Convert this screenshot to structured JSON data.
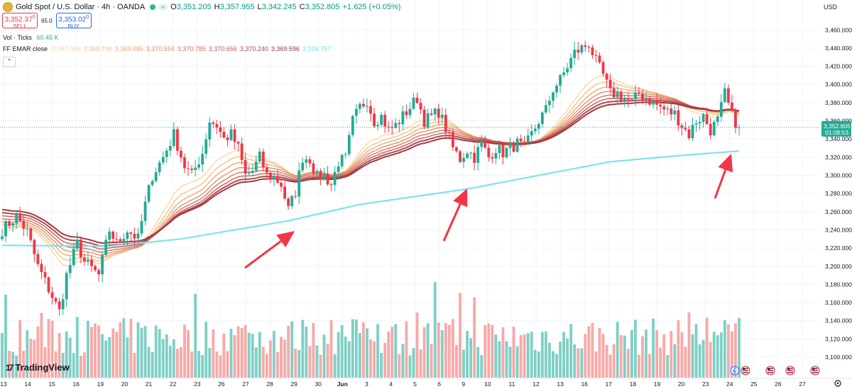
{
  "header": {
    "symbol": "Gold Spot / U.S. Dollar · 4h · OANDA",
    "eq_badge": "≈",
    "ohlc": [
      {
        "k": "O",
        "v": "3,351.205"
      },
      {
        "k": "H",
        "v": "3,357.955"
      },
      {
        "k": "L",
        "v": "3,342.245"
      },
      {
        "k": "C",
        "v": "3,352.805"
      },
      {
        "k": "",
        "v": "+1.625 (+0.05%)"
      }
    ]
  },
  "trade": {
    "sell_price": "3,352.37",
    "sell_sup": "0",
    "sell_label": "SELL",
    "spread": "65.0",
    "buy_price": "3,353.02",
    "buy_sup": "0",
    "buy_label": "BUY"
  },
  "indicators": {
    "vol_label": "Vol · Ticks",
    "vol_value": "60.45 K",
    "emar_label": "FF EMAR close",
    "emar_values": [
      {
        "v": "3,367.384",
        "color": "#f7d9a0"
      },
      {
        "v": "3,368.706",
        "color": "#f3c48a"
      },
      {
        "v": "3,369.885",
        "color": "#eeaa78"
      },
      {
        "v": "3,370.554",
        "color": "#e69068"
      },
      {
        "v": "3,370.785",
        "color": "#d97460"
      },
      {
        "v": "3,370.656",
        "color": "#c75e58"
      },
      {
        "v": "3,370.240",
        "color": "#b24a4c"
      },
      {
        "v": "3,369.596",
        "color": "#9e3a40"
      },
      {
        "v": "3,326.757",
        "color": "#7fe3ec"
      }
    ],
    "collapse_icon": "chevron-up-icon"
  },
  "brand": {
    "name": "TradingView",
    "icon": "tradingview-logo-icon"
  },
  "price_axis": {
    "currency": "USD",
    "last_price": "3,352.805",
    "countdown": "01:08:53",
    "last_color": "#22ab94"
  },
  "chart_data": {
    "type": "candlestick",
    "timeframe": "4h",
    "ylim": [
      3086,
      3468
    ],
    "yticks": [
      3100,
      3120,
      3140,
      3160,
      3180,
      3200,
      3220,
      3240,
      3260,
      3280,
      3300,
      3320,
      3340,
      3360,
      3380,
      3400,
      3420,
      3440,
      3460
    ],
    "xticks": [
      "13",
      "14",
      "15",
      "16",
      "19",
      "20",
      "21",
      "22",
      "23",
      "26",
      "27",
      "28",
      "29",
      "30",
      "Jun",
      "3",
      "4",
      "5",
      "6",
      "9",
      "10",
      "11",
      "12",
      "13",
      "16",
      "17",
      "18",
      "19",
      "20",
      "23",
      "24",
      "25",
      "26",
      "27"
    ],
    "anchors": [
      {
        "t": 0,
        "p": 3240
      },
      {
        "t": 4,
        "p": 3255
      },
      {
        "t": 7,
        "p": 3238
      },
      {
        "t": 10,
        "p": 3200
      },
      {
        "t": 13,
        "p": 3175
      },
      {
        "t": 16,
        "p": 3150
      },
      {
        "t": 18,
        "p": 3190
      },
      {
        "t": 21,
        "p": 3225
      },
      {
        "t": 23,
        "p": 3205
      },
      {
        "t": 27,
        "p": 3190
      },
      {
        "t": 30,
        "p": 3240
      },
      {
        "t": 32,
        "p": 3225
      },
      {
        "t": 35,
        "p": 3240
      },
      {
        "t": 38,
        "p": 3230
      },
      {
        "t": 40,
        "p": 3268
      },
      {
        "t": 42,
        "p": 3300
      },
      {
        "t": 45,
        "p": 3320
      },
      {
        "t": 48,
        "p": 3345
      },
      {
        "t": 51,
        "p": 3310
      },
      {
        "t": 53,
        "p": 3300
      },
      {
        "t": 56,
        "p": 3325
      },
      {
        "t": 58,
        "p": 3360
      },
      {
        "t": 60,
        "p": 3355
      },
      {
        "t": 62,
        "p": 3340
      },
      {
        "t": 64,
        "p": 3345
      },
      {
        "t": 66,
        "p": 3330
      },
      {
        "t": 68,
        "p": 3300
      },
      {
        "t": 70,
        "p": 3305
      },
      {
        "t": 72,
        "p": 3320
      },
      {
        "t": 74,
        "p": 3300
      },
      {
        "t": 76,
        "p": 3298
      },
      {
        "t": 78,
        "p": 3290
      },
      {
        "t": 80,
        "p": 3262
      },
      {
        "t": 82,
        "p": 3282
      },
      {
        "t": 84,
        "p": 3320
      },
      {
        "t": 86,
        "p": 3318
      },
      {
        "t": 88,
        "p": 3298
      },
      {
        "t": 90,
        "p": 3300
      },
      {
        "t": 92,
        "p": 3290
      },
      {
        "t": 94,
        "p": 3315
      },
      {
        "t": 96,
        "p": 3318
      },
      {
        "t": 98,
        "p": 3360
      },
      {
        "t": 100,
        "p": 3375
      },
      {
        "t": 102,
        "p": 3383
      },
      {
        "t": 104,
        "p": 3360
      },
      {
        "t": 106,
        "p": 3365
      },
      {
        "t": 108,
        "p": 3350
      },
      {
        "t": 110,
        "p": 3355
      },
      {
        "t": 112,
        "p": 3365
      },
      {
        "t": 114,
        "p": 3375
      },
      {
        "t": 116,
        "p": 3385
      },
      {
        "t": 118,
        "p": 3360
      },
      {
        "t": 120,
        "p": 3365
      },
      {
        "t": 122,
        "p": 3370
      },
      {
        "t": 124,
        "p": 3352
      },
      {
        "t": 126,
        "p": 3330
      },
      {
        "t": 128,
        "p": 3318
      },
      {
        "t": 130,
        "p": 3328
      },
      {
        "t": 132,
        "p": 3320
      },
      {
        "t": 134,
        "p": 3335
      },
      {
        "t": 136,
        "p": 3320
      },
      {
        "t": 138,
        "p": 3330
      },
      {
        "t": 140,
        "p": 3325
      },
      {
        "t": 142,
        "p": 3330
      },
      {
        "t": 144,
        "p": 3335
      },
      {
        "t": 146,
        "p": 3330
      },
      {
        "t": 148,
        "p": 3345
      },
      {
        "t": 150,
        "p": 3360
      },
      {
        "t": 152,
        "p": 3372
      },
      {
        "t": 154,
        "p": 3395
      },
      {
        "t": 156,
        "p": 3405
      },
      {
        "t": 158,
        "p": 3420
      },
      {
        "t": 160,
        "p": 3435
      },
      {
        "t": 162,
        "p": 3440
      },
      {
        "t": 164,
        "p": 3445
      },
      {
        "t": 166,
        "p": 3425
      },
      {
        "t": 168,
        "p": 3410
      },
      {
        "t": 170,
        "p": 3390
      },
      {
        "t": 172,
        "p": 3390
      },
      {
        "t": 174,
        "p": 3385
      },
      {
        "t": 176,
        "p": 3380
      },
      {
        "t": 178,
        "p": 3390
      },
      {
        "t": 180,
        "p": 3385
      },
      {
        "t": 182,
        "p": 3380
      },
      {
        "t": 184,
        "p": 3375
      },
      {
        "t": 186,
        "p": 3370
      },
      {
        "t": 188,
        "p": 3368
      },
      {
        "t": 190,
        "p": 3355
      },
      {
        "t": 192,
        "p": 3345
      },
      {
        "t": 194,
        "p": 3360
      },
      {
        "t": 196,
        "p": 3365
      },
      {
        "t": 198,
        "p": 3350
      },
      {
        "t": 200,
        "p": 3360
      },
      {
        "t": 202,
        "p": 3390
      },
      {
        "t": 204,
        "p": 3365
      },
      {
        "t": 206,
        "p": 3352.805
      }
    ],
    "ema_slow_anchors": [
      {
        "t": 0,
        "p": 3223
      },
      {
        "t": 30,
        "p": 3222
      },
      {
        "t": 50,
        "p": 3230
      },
      {
        "t": 80,
        "p": 3250
      },
      {
        "t": 100,
        "p": 3268
      },
      {
        "t": 130,
        "p": 3285
      },
      {
        "t": 150,
        "p": 3300
      },
      {
        "t": 170,
        "p": 3315
      },
      {
        "t": 190,
        "p": 3322
      },
      {
        "t": 206,
        "p": 3326.757
      }
    ],
    "volume_ylim": [
      0,
      90
    ],
    "arrows": [
      "arrow-1",
      "arrow-2",
      "arrow-3"
    ],
    "last_price": 3352.805,
    "annotation_color": "#f23645"
  }
}
